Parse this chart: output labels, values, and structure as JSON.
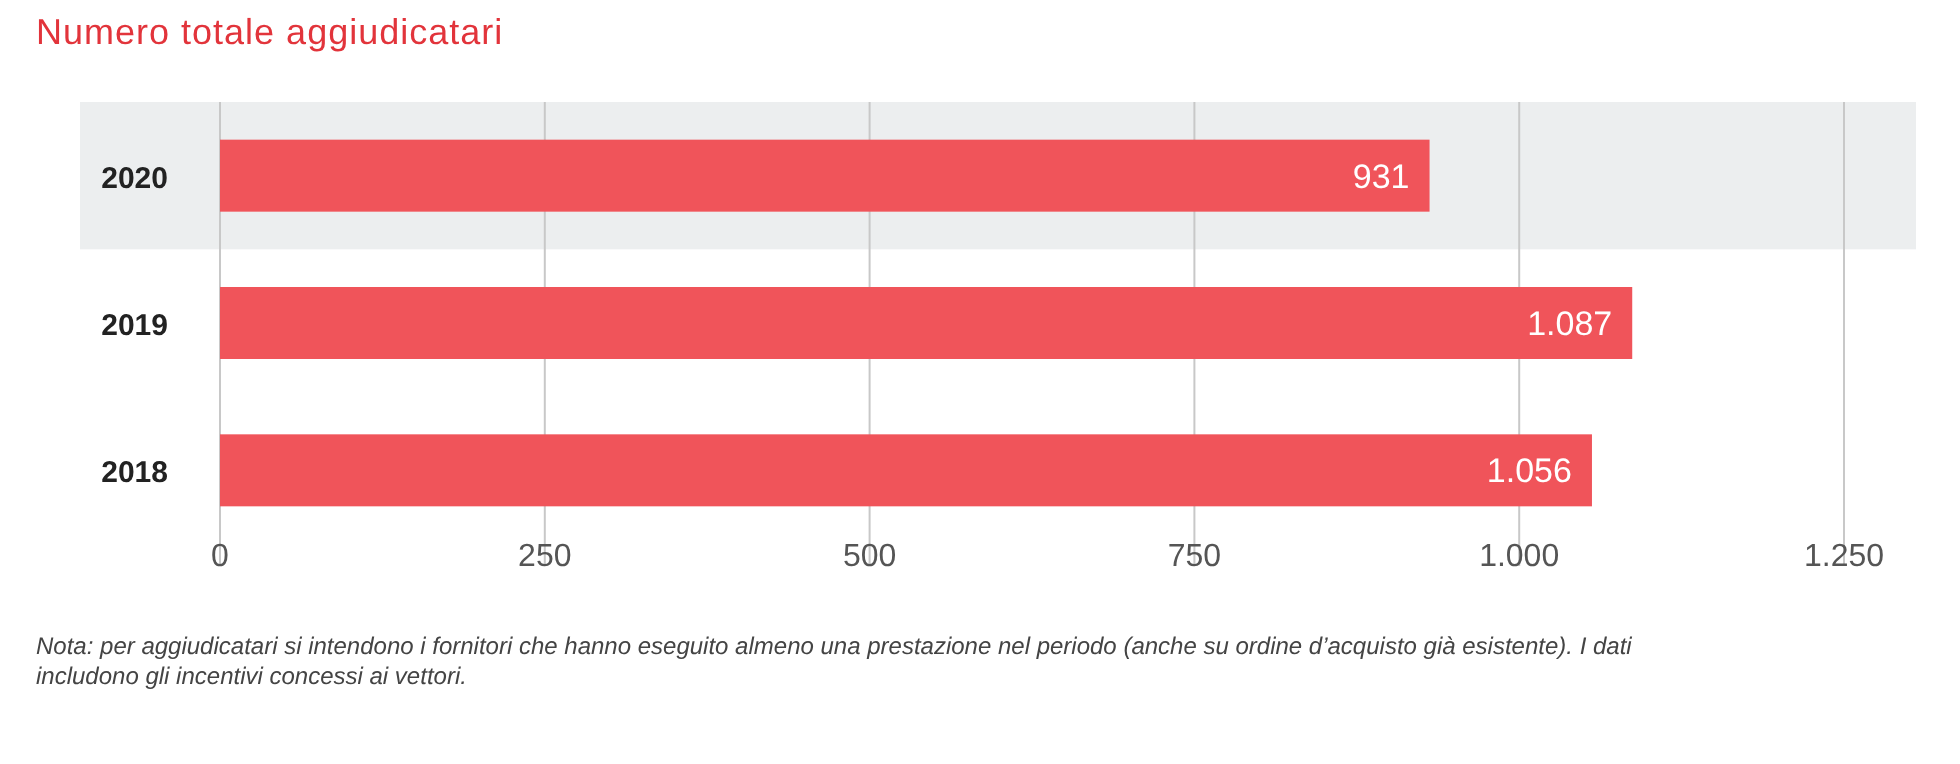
{
  "chart_data": {
    "type": "bar",
    "orientation": "horizontal",
    "title": "Numero totale aggiudicatari",
    "categories": [
      "2020",
      "2019",
      "2018"
    ],
    "values": [
      931,
      1087,
      1056
    ],
    "value_labels": [
      "931",
      "1.087",
      "1.056"
    ],
    "color": "#f0545a",
    "xlim": [
      0,
      1250
    ],
    "xticks": [
      0,
      250,
      500,
      750,
      {
        "value": 1000,
        "label": "1.000"
      },
      {
        "value": 1250,
        "label": "1.250"
      }
    ],
    "grid": "x",
    "bands": [
      {
        "axis": "y",
        "from": "2020",
        "to": "2020",
        "color": "#eceeef"
      }
    ],
    "annotations": [
      "Nota: per aggiudicatari si intendono i fornitori che hanno eseguito almeno una prestazione nel periodo (anche su ordine d’acquisto già esistente). I dati includono gli incentivi concessi ai vettori."
    ]
  }
}
